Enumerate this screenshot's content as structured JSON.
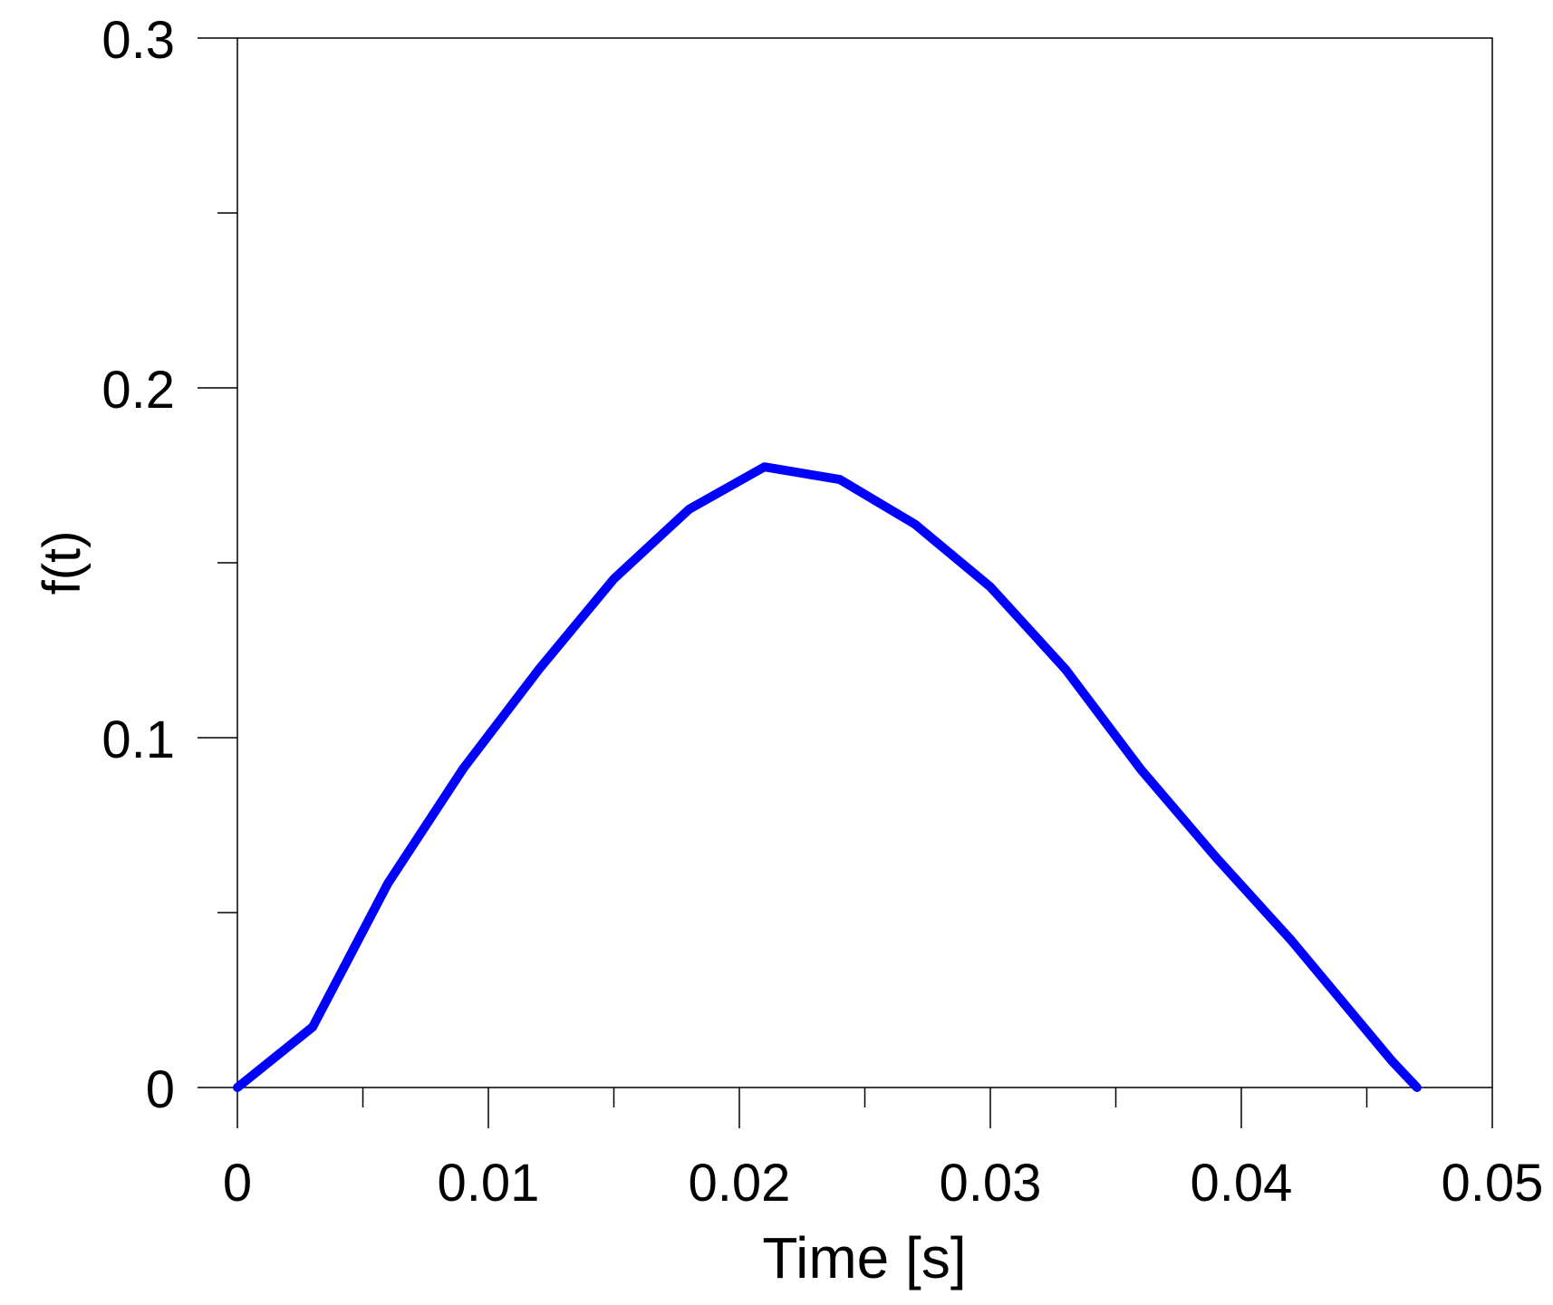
{
  "chart_data": {
    "type": "line",
    "title": "",
    "xlabel": "Time [s]",
    "ylabel": "f(t)",
    "xlim": [
      0,
      0.05
    ],
    "ylim": [
      0,
      0.3
    ],
    "xticks": [
      0,
      0.01,
      0.02,
      0.03,
      0.04,
      0.05
    ],
    "xtick_labels": [
      "0",
      "0.01",
      "0.02",
      "0.03",
      "0.04",
      "0.05"
    ],
    "xminor": [
      0.005,
      0.015,
      0.025,
      0.035,
      0.045
    ],
    "yticks": [
      0,
      0.1,
      0.2,
      0.3
    ],
    "ytick_labels": [
      "0",
      "0.1",
      "0.2",
      "0.3"
    ],
    "yminor": [
      0.05,
      0.15,
      0.25
    ],
    "grid": false,
    "legend": "none",
    "series": [
      {
        "name": "f(t)",
        "color": "#0000ff",
        "x": [
          0,
          0.003,
          0.006,
          0.009,
          0.012,
          0.015,
          0.018,
          0.021,
          0.024,
          0.027,
          0.03,
          0.033,
          0.036,
          0.039,
          0.042,
          0.046,
          0.047
        ],
        "y": [
          0,
          0.0173,
          0.0584,
          0.0912,
          0.1194,
          0.1454,
          0.1653,
          0.1774,
          0.1738,
          0.161,
          0.1431,
          0.1195,
          0.0909,
          0.0657,
          0.042,
          0.0076,
          0.0
        ]
      }
    ]
  }
}
